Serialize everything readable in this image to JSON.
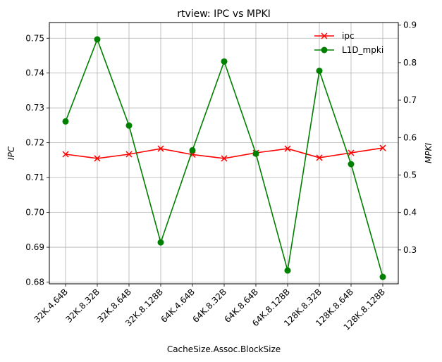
{
  "chart_data": {
    "type": "line",
    "title": "rtview: IPC vs MPKI",
    "xlabel": "CacheSize.Assoc.BlockSize",
    "ylabel_left": "IPC",
    "ylabel_right": "MPKI",
    "categories": [
      "32K.4.64B",
      "32K.8.32B",
      "32K.8.64B",
      "32K.8.128B",
      "64K.4.64B",
      "64K.8.32B",
      "64K.8.64B",
      "64K.8.128B",
      "128K.8.32B",
      "128K.8.64B",
      "128K.8.128B"
    ],
    "ylim_left": [
      0.6795,
      0.7545
    ],
    "yticks_left": [
      0.68,
      0.69,
      0.7,
      0.71,
      0.72,
      0.73,
      0.74,
      0.75
    ],
    "ytick_labels_left": [
      "0.68",
      "0.69",
      "0.70",
      "0.71",
      "0.72",
      "0.73",
      "0.74",
      "0.75"
    ],
    "ylim_right": [
      0.2095,
      0.907
    ],
    "yticks_right": [
      0.3,
      0.4,
      0.5,
      0.6,
      0.7,
      0.8,
      0.9
    ],
    "ytick_labels_right": [
      "0.3",
      "0.4",
      "0.5",
      "0.6",
      "0.7",
      "0.8",
      "0.9"
    ],
    "grid": true,
    "legend_position": "top-right",
    "series": [
      {
        "name": "ipc",
        "axis": "left",
        "color": "#ff0000",
        "marker": "x",
        "values": [
          0.7167,
          0.7155,
          0.7167,
          0.7183,
          0.7166,
          0.7155,
          0.7171,
          0.7183,
          0.7157,
          0.7171,
          0.7185
        ]
      },
      {
        "name": "L1D_mpki",
        "axis": "right",
        "color": "#008000",
        "marker": "o",
        "values": [
          0.643,
          0.862,
          0.632,
          0.32,
          0.566,
          0.803,
          0.557,
          0.245,
          0.778,
          0.529,
          0.228
        ]
      }
    ]
  }
}
